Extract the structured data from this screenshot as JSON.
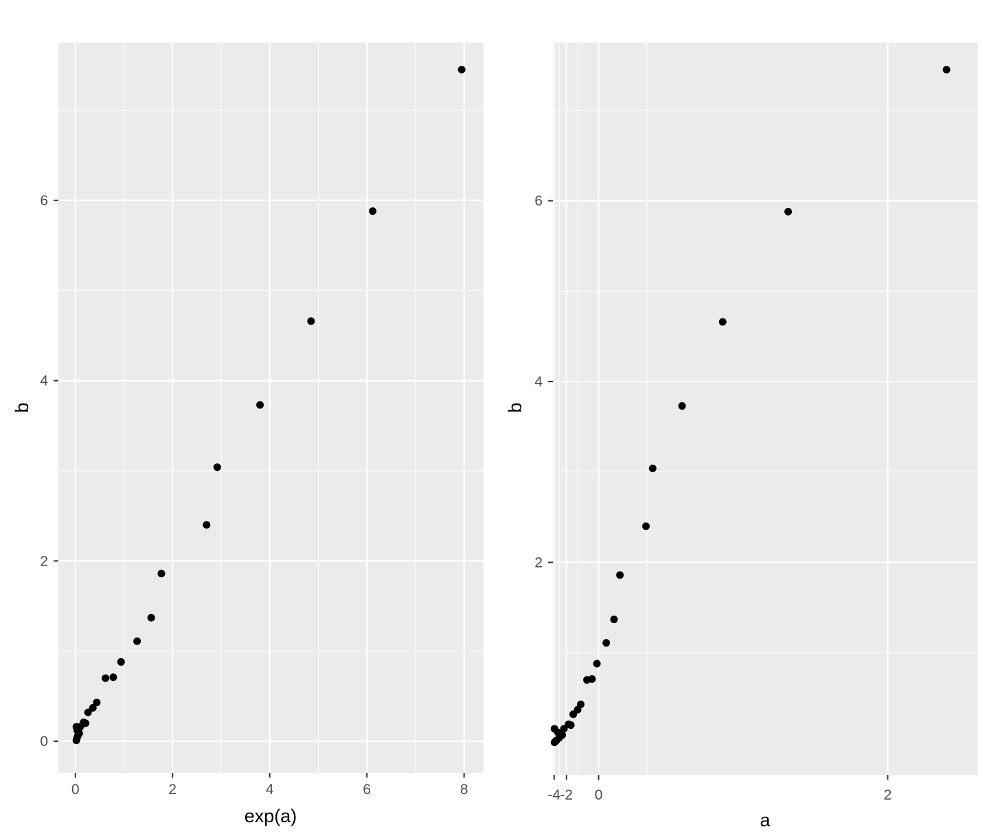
{
  "chart_data": [
    {
      "type": "scatter",
      "xlabel": "exp(a)",
      "ylabel": "b",
      "x_ticks": [
        "0",
        "2",
        "4",
        "6",
        "8"
      ],
      "y_ticks": [
        "0",
        "2",
        "4",
        "6"
      ],
      "xlim": [
        -0.35,
        8.4
      ],
      "ylim": [
        -0.35,
        7.75
      ],
      "grid": true,
      "point_color": "#000000",
      "points": [
        {
          "x": 0.02,
          "y": 0.01
        },
        {
          "x": 0.03,
          "y": 0.03
        },
        {
          "x": 0.05,
          "y": 0.06
        },
        {
          "x": 0.08,
          "y": 0.09
        },
        {
          "x": 0.04,
          "y": 0.12
        },
        {
          "x": 0.02,
          "y": 0.16
        },
        {
          "x": 0.1,
          "y": 0.16
        },
        {
          "x": 0.17,
          "y": 0.21
        },
        {
          "x": 0.21,
          "y": 0.2
        },
        {
          "x": 0.26,
          "y": 0.32
        },
        {
          "x": 0.36,
          "y": 0.37
        },
        {
          "x": 0.44,
          "y": 0.43
        },
        {
          "x": 0.62,
          "y": 0.7
        },
        {
          "x": 0.78,
          "y": 0.71
        },
        {
          "x": 0.94,
          "y": 0.88
        },
        {
          "x": 1.27,
          "y": 1.11
        },
        {
          "x": 1.56,
          "y": 1.37
        },
        {
          "x": 1.77,
          "y": 1.86
        },
        {
          "x": 2.7,
          "y": 2.4
        },
        {
          "x": 2.92,
          "y": 3.04
        },
        {
          "x": 3.8,
          "y": 3.73
        },
        {
          "x": 4.85,
          "y": 4.66
        },
        {
          "x": 6.12,
          "y": 5.88
        },
        {
          "x": 7.95,
          "y": 7.45
        }
      ]
    },
    {
      "type": "scatter",
      "xlabel": "a",
      "ylabel": "b",
      "x_ticks": [
        "-4",
        "-2",
        "0",
        "2"
      ],
      "y_ticks": [
        "2",
        "4",
        "6"
      ],
      "xlim": [
        -4.3,
        2.1
      ],
      "ylim": [
        -0.35,
        7.75
      ],
      "grid": true,
      "point_color": "#000000",
      "points": [
        {
          "x": -3.91,
          "y": 0.01
        },
        {
          "x": -3.5,
          "y": 0.03
        },
        {
          "x": -3.0,
          "y": 0.06
        },
        {
          "x": -2.53,
          "y": 0.09
        },
        {
          "x": -3.22,
          "y": 0.12
        },
        {
          "x": -3.91,
          "y": 0.16
        },
        {
          "x": -2.3,
          "y": 0.16
        },
        {
          "x": -1.77,
          "y": 0.21
        },
        {
          "x": -1.56,
          "y": 0.2
        },
        {
          "x": -1.35,
          "y": 0.32
        },
        {
          "x": -1.02,
          "y": 0.37
        },
        {
          "x": -0.82,
          "y": 0.43
        },
        {
          "x": -0.48,
          "y": 0.7
        },
        {
          "x": -0.25,
          "y": 0.71
        },
        {
          "x": -0.06,
          "y": 0.88
        },
        {
          "x": 0.24,
          "y": 1.11
        },
        {
          "x": 0.44,
          "y": 1.37
        },
        {
          "x": 0.57,
          "y": 1.86
        },
        {
          "x": 0.99,
          "y": 2.4
        },
        {
          "x": 1.07,
          "y": 3.04
        },
        {
          "x": 1.34,
          "y": 3.73
        },
        {
          "x": 1.58,
          "y": 4.66
        },
        {
          "x": 1.81,
          "y": 5.88
        },
        {
          "x": 2.07,
          "y": 7.45
        }
      ]
    }
  ]
}
